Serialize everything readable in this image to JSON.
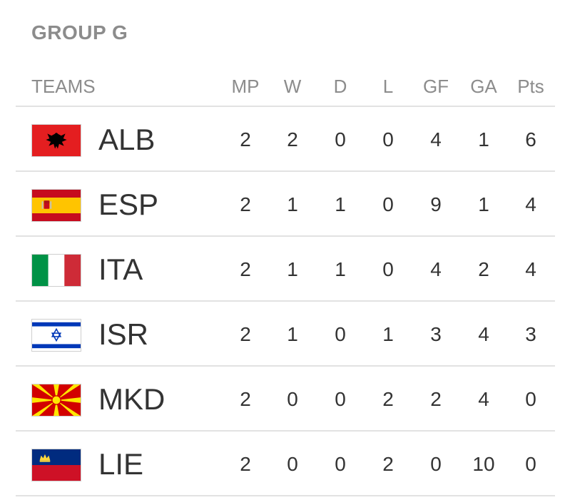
{
  "group": {
    "title": "GROUP G"
  },
  "header": {
    "teams": "TEAMS",
    "mp": "MP",
    "w": "W",
    "d": "D",
    "l": "L",
    "gf": "GF",
    "ga": "GA",
    "pts": "Pts"
  },
  "rows": [
    {
      "team": "ALB",
      "flag": "albania-flag-icon",
      "mp": "2",
      "w": "2",
      "d": "0",
      "l": "0",
      "gf": "4",
      "ga": "1",
      "pts": "6"
    },
    {
      "team": "ESP",
      "flag": "spain-flag-icon",
      "mp": "2",
      "w": "1",
      "d": "1",
      "l": "0",
      "gf": "9",
      "ga": "1",
      "pts": "4"
    },
    {
      "team": "ITA",
      "flag": "italy-flag-icon",
      "mp": "2",
      "w": "1",
      "d": "1",
      "l": "0",
      "gf": "4",
      "ga": "2",
      "pts": "4"
    },
    {
      "team": "ISR",
      "flag": "israel-flag-icon",
      "mp": "2",
      "w": "1",
      "d": "0",
      "l": "1",
      "gf": "3",
      "ga": "4",
      "pts": "3"
    },
    {
      "team": "MKD",
      "flag": "north-macedonia-flag-icon",
      "mp": "2",
      "w": "0",
      "d": "0",
      "l": "2",
      "gf": "2",
      "ga": "4",
      "pts": "0"
    },
    {
      "team": "LIE",
      "flag": "liechtenstein-flag-icon",
      "mp": "2",
      "w": "0",
      "d": "0",
      "l": "2",
      "gf": "0",
      "ga": "10",
      "pts": "0"
    }
  ],
  "colors": {
    "header_text": "#8c8c8c",
    "body_text": "#333333",
    "divider": "#e2e2e2"
  }
}
